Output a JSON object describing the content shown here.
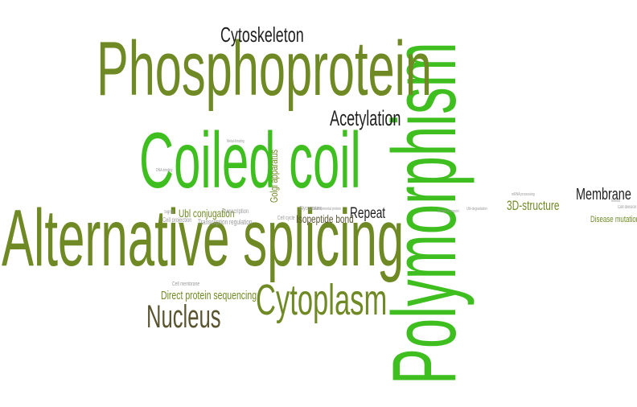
{
  "palette": {
    "bright_green": "#3fbf1f",
    "olive": "#6f8a25",
    "dark_olive": "#5a5530",
    "dark": "#1f1f1f",
    "grey": "#9a9a9a"
  },
  "words": [
    {
      "id": "word-polymorphism",
      "text": "Polymorphism",
      "color": "bright_green"
    },
    {
      "id": "word-phosphoprotein",
      "text": "Phosphoprotein",
      "color": "olive"
    },
    {
      "id": "word-alternative-splicing",
      "text": "Alternative splicing",
      "color": "olive"
    },
    {
      "id": "word-coiled-coil",
      "text": "Coiled coil",
      "color": "bright_green"
    },
    {
      "id": "word-cytoplasm",
      "text": "Cytoplasm",
      "color": "olive"
    },
    {
      "id": "word-nucleus",
      "text": "Nucleus",
      "color": "dark_olive"
    },
    {
      "id": "word-cytoskeleton",
      "text": "Cytoskeleton",
      "color": "dark"
    },
    {
      "id": "word-acetylation",
      "text": "Acetylation",
      "color": "dark"
    },
    {
      "id": "word-membrane",
      "text": "Membrane",
      "color": "dark"
    },
    {
      "id": "word-repeat",
      "text": "Repeat",
      "color": "dark"
    },
    {
      "id": "word-3d-structure",
      "text": "3D-structure",
      "color": "olive"
    },
    {
      "id": "word-direct-protein-sequencing",
      "text": "Direct protein sequencing",
      "color": "olive"
    },
    {
      "id": "word-isopeptide-bond",
      "text": "Isopeptide bond",
      "color": "dark_olive"
    },
    {
      "id": "word-ubl-conjugation",
      "text": "Ubl conjugation",
      "color": "olive"
    },
    {
      "id": "word-golgi-apparatus",
      "text": "Golgi apparatus",
      "color": "olive"
    },
    {
      "id": "word-disease-mutation",
      "text": "Disease mutation",
      "color": "olive"
    },
    {
      "id": "word-transcription-regulation",
      "text": "Transcription regulation",
      "color": "grey"
    },
    {
      "id": "word-transcription",
      "text": "Transcription",
      "color": "grey"
    },
    {
      "id": "word-cell-projection",
      "text": "Cell projection",
      "color": "grey"
    },
    {
      "id": "word-cell-membrane",
      "text": "Cell membrane",
      "color": "grey"
    },
    {
      "id": "word-glycoprotein",
      "text": "Glycoprotein",
      "color": "grey"
    },
    {
      "id": "word-cell-cycle",
      "text": "Cell cycle",
      "color": "grey"
    },
    {
      "id": "word-developmental-protein",
      "text": "Developmental protein",
      "color": "grey"
    },
    {
      "id": "word-metal-binding",
      "text": "Metal-binding",
      "color": "grey"
    },
    {
      "id": "word-dna-binding",
      "text": "DNA-binding",
      "color": "grey"
    },
    {
      "id": "word-signal",
      "text": "Signal",
      "color": "grey"
    },
    {
      "id": "word-mrna-processing",
      "text": "mRNA processing",
      "color": "grey"
    },
    {
      "id": "word-protein-transport",
      "text": "Protein transport",
      "color": "grey"
    },
    {
      "id": "word-cell-division",
      "text": "Cell division",
      "color": "grey"
    },
    {
      "id": "word-ubl-degradation",
      "text": "Ubl-degradation",
      "color": "grey"
    },
    {
      "id": "word-mitosis",
      "text": "Mitosis",
      "color": "grey"
    }
  ]
}
